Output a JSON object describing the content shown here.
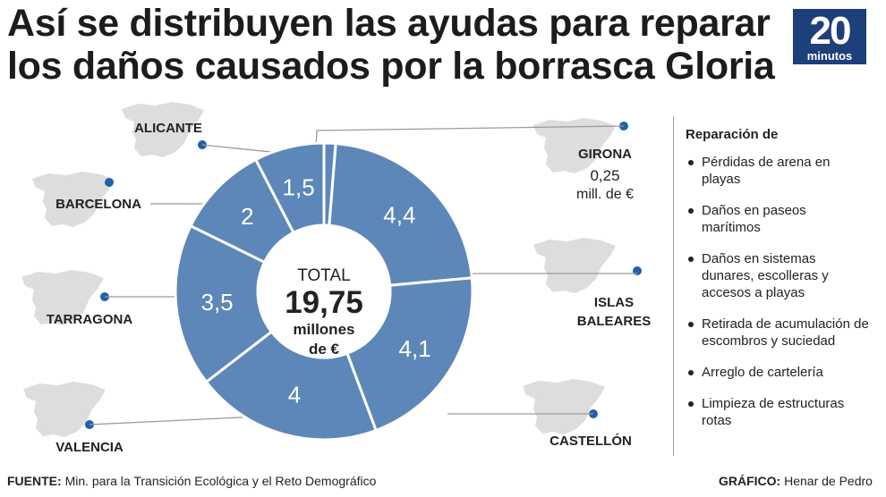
{
  "title": "Así se distribuyen las ayudas para reparar los daños causados por la borrasca Gloria",
  "logo": {
    "number": "20",
    "word": "minutos"
  },
  "center": {
    "label": "TOTAL",
    "value": "19,75",
    "unit_line1": "millones",
    "unit_line2": "de €"
  },
  "girona_note": {
    "value": "0,25",
    "unit": "mill. de €"
  },
  "chart_data": {
    "type": "pie",
    "title": "Así se distribuyen las ayudas para reparar los daños causados por la borrasca Gloria",
    "unit": "millones de €",
    "total": 19.75,
    "categories": [
      "GIRONA",
      "ISLAS BALEARES",
      "CASTELLÓN",
      "VALENCIA",
      "TARRAGONA",
      "BARCELONA",
      "ALICANTE"
    ],
    "values": [
      0.25,
      4.4,
      4.1,
      4,
      3.5,
      2,
      1.5
    ],
    "value_labels": [
      "",
      "4,4",
      "4,1",
      "4",
      "3,5",
      "2",
      "1,5"
    ],
    "colors": {
      "segment": "#5d87b8",
      "separator": "#ffffff",
      "region_marker": "#1f61a8",
      "map": "#dddddd",
      "leader": "#9a9a9a"
    }
  },
  "legend": {
    "title": "Reparación de",
    "items": [
      "Pérdidas de arena en playas",
      "Daños en paseos marítimos",
      "Daños en sistemas dunares, escolleras y accesos a playas",
      "Retirada de acumulación de escombros y suciedad",
      "Arreglo de cartelería",
      "Limpieza de estructuras rotas"
    ]
  },
  "footer": {
    "source_label": "FUENTE:",
    "source_text": "Min. para la Transición Ecológica y el Reto Demográfico",
    "credit_label": "GRÁFICO:",
    "credit_text": "Henar de Pedro"
  }
}
